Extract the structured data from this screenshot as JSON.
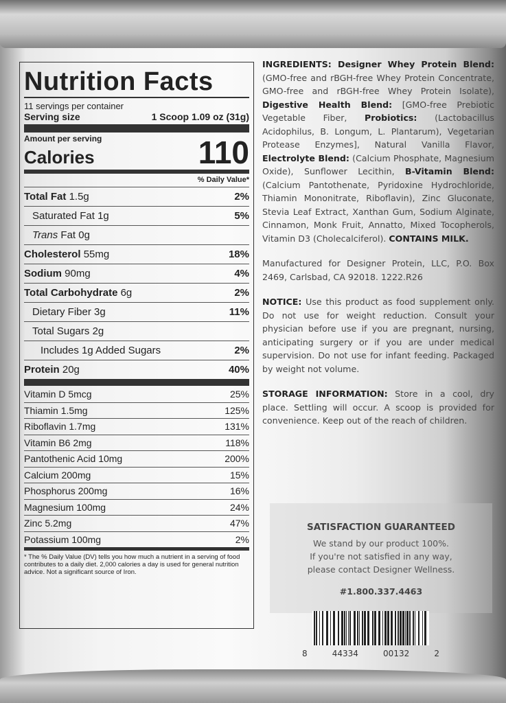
{
  "nutrition": {
    "title": "Nutrition Facts",
    "servings": "11 servings per container",
    "serving_size_label": "Serving size",
    "serving_size_value": "1 Scoop 1.09 oz (31g)",
    "amount_per_serving": "Amount per serving",
    "calories_label": "Calories",
    "calories_value": "110",
    "dv_header": "% Daily Value*",
    "rows": [
      {
        "name": "Total Fat",
        "amount": "1.5g",
        "dv": "2%",
        "bold": true,
        "indent": 0
      },
      {
        "name": "Saturated Fat",
        "amount": "1g",
        "dv": "5%",
        "bold": false,
        "indent": 1
      },
      {
        "name": "Trans",
        "suffix": " Fat",
        "amount": "0g",
        "dv": "",
        "bold": false,
        "indent": 1,
        "italic": true
      },
      {
        "name": "Cholesterol",
        "amount": "55mg",
        "dv": "18%",
        "bold": true,
        "indent": 0
      },
      {
        "name": "Sodium",
        "amount": "90mg",
        "dv": "4%",
        "bold": true,
        "indent": 0
      },
      {
        "name": "Total Carbohydrate",
        "amount": "6g",
        "dv": "2%",
        "bold": true,
        "indent": 0
      },
      {
        "name": "Dietary Fiber",
        "amount": "3g",
        "dv": "11%",
        "bold": false,
        "indent": 1
      },
      {
        "name": "Total Sugars",
        "amount": "2g",
        "dv": "",
        "bold": false,
        "indent": 1
      },
      {
        "name": "Includes 1g Added Sugars",
        "amount": "",
        "dv": "2%",
        "bold": false,
        "indent": 2
      },
      {
        "name": "Protein",
        "amount": "20g",
        "dv": "40%",
        "bold": true,
        "indent": 0
      }
    ],
    "vitamins": [
      {
        "name": "Vitamin D",
        "amount": "5mcg",
        "dv": "25%"
      },
      {
        "name": "Thiamin",
        "amount": "1.5mg",
        "dv": "125%"
      },
      {
        "name": "Riboflavin",
        "amount": "1.7mg",
        "dv": "131%"
      },
      {
        "name": "Vitamin B6",
        "amount": "2mg",
        "dv": "118%"
      },
      {
        "name": "Pantothenic Acid",
        "amount": "10mg",
        "dv": "200%"
      },
      {
        "name": "Calcium",
        "amount": "200mg",
        "dv": "15%"
      },
      {
        "name": "Phosphorus",
        "amount": "200mg",
        "dv": "16%"
      },
      {
        "name": "Magnesium",
        "amount": "100mg",
        "dv": "24%"
      },
      {
        "name": "Zinc",
        "amount": "5.2mg",
        "dv": "47%"
      },
      {
        "name": "Potassium",
        "amount": "100mg",
        "dv": "2%"
      }
    ],
    "footnote": "* The % Daily Value (DV) tells you how much a nutrient in a serving of food contributes to a daily diet. 2,000 calories a day is used for general nutrition advice. Not a significant source of Iron."
  },
  "ingredients": [
    {
      "t": "INGREDIENTS: Designer Whey Protein Blend:",
      "b": true
    },
    {
      "t": " (GMO-free and rBGH-free Whey Protein Concentrate, GMO-free and rBGH-free Whey Protein Isolate), ",
      "b": false
    },
    {
      "t": "Digestive Health Blend:",
      "b": true
    },
    {
      "t": " [GMO-free Prebiotic Vegetable Fiber, ",
      "b": false
    },
    {
      "t": "Probiotics:",
      "b": true
    },
    {
      "t": " (Lactobacillus Acidophilus, B. Longum, L. Plantarum), Vegetarian Protease Enzymes], Natural Vanilla Flavor, ",
      "b": false
    },
    {
      "t": "Electrolyte Blend:",
      "b": true
    },
    {
      "t": " (Calcium Phosphate, Magnesium Oxide), Sunflower Lecithin, ",
      "b": false
    },
    {
      "t": "B-Vitamin Blend:",
      "b": true
    },
    {
      "t": " (Calcium Pantothenate, Pyridoxine Hydrochloride, Thiamin Mononitrate, Riboflavin), Zinc Gluconate, Stevia Leaf Extract, Xanthan Gum, Sodium Alginate, Cinnamon, Monk Fruit, Annatto, Mixed Tocopherols, Vitamin D3 (Cholecalciferol). ",
      "b": false
    },
    {
      "t": "CONTAINS MILK.",
      "b": true
    }
  ],
  "manufacturer": "Manufactured for Designer Protein, LLC, P.O. Box 2469, Carlsbad, CA 92018. 1222.R26",
  "notice": {
    "label": "NOTICE:",
    "text": " Use this product as food supplement only. Do not use for weight reduction. Consult your physician before use if you are pregnant, nursing, anticipating surgery or if you are under medical supervision. Do not use for infant feeding. Packaged by weight not volume."
  },
  "storage": {
    "label": "STORAGE INFORMATION:",
    "text": " Store in a cool, dry place.  Settling will occur. A scoop is provided for convenience. Keep out of the reach of children."
  },
  "satisfaction": {
    "title": "SATISFACTION GUARANTEED",
    "lines": [
      "We stand by our product 100%.",
      "If you're not satisfied in any way,",
      "please contact Designer Wellness."
    ],
    "phone": "#1.800.337.4463"
  },
  "barcode": {
    "first": "8",
    "middle1": "44334",
    "middle2": "00132",
    "last": "2"
  }
}
